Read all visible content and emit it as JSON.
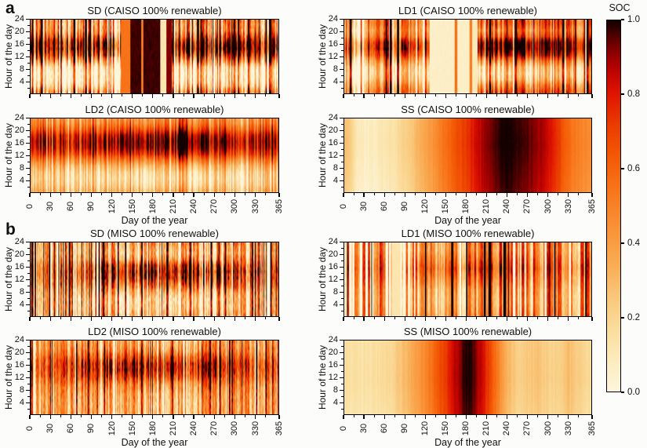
{
  "figure": {
    "panel_labels": {
      "a": "a",
      "b": "b"
    },
    "colorbar": {
      "title": "SOC",
      "tick_labels": [
        "1.0",
        "0.8",
        "0.6",
        "0.4",
        "0.2",
        "0.0"
      ],
      "tick_values": [
        1.0,
        0.8,
        0.6,
        0.4,
        0.2,
        0.0
      ]
    },
    "colormap_stops": [
      [
        0.0,
        "#fdf6dc"
      ],
      [
        0.08,
        "#fcecc0"
      ],
      [
        0.16,
        "#fadf9f"
      ],
      [
        0.25,
        "#f9c87c"
      ],
      [
        0.34,
        "#f9ad55"
      ],
      [
        0.44,
        "#f99237"
      ],
      [
        0.54,
        "#f8761b"
      ],
      [
        0.63,
        "#f45a05"
      ],
      [
        0.72,
        "#ea3b00"
      ],
      [
        0.8,
        "#e01500"
      ],
      [
        0.86,
        "#c00400"
      ],
      [
        0.91,
        "#900000"
      ],
      [
        0.95,
        "#5c0000"
      ],
      [
        0.98,
        "#2e0000"
      ],
      [
        1.0,
        "#140000"
      ]
    ],
    "axes": {
      "x_ticks": [
        0,
        30,
        60,
        90,
        120,
        150,
        180,
        210,
        240,
        270,
        300,
        330,
        365
      ],
      "x_minor_ticks": [
        15,
        45,
        75,
        105,
        135,
        165,
        195,
        225,
        255,
        285,
        315,
        345
      ],
      "y_ticks": [
        24,
        20,
        16,
        12,
        8,
        4
      ],
      "y_minor_ticks": [
        22,
        18,
        14,
        10,
        6,
        2
      ],
      "xlim": [
        0,
        365
      ],
      "ylim": [
        1,
        24
      ]
    }
  },
  "chart_data": [
    {
      "type": "heatmap",
      "id": "sd-caiso",
      "title": "SD (CAISO 100% renewable)",
      "xlabel": "Day of the year",
      "ylabel": "Hour of the day",
      "show_x_tick_labels": false,
      "show_x_label": false,
      "gen": {
        "seed": 11,
        "noise": 0.13,
        "env": [
          [
            0,
            0.42
          ],
          [
            365,
            0.42
          ]
        ],
        "stripe": {
          "amp": 0.3,
          "maxw": 2,
          "pex": 0.28
        },
        "profile": [
          [
            1,
            0.05
          ],
          [
            3,
            -0.22
          ],
          [
            5,
            -0.36
          ],
          [
            7,
            -0.4
          ],
          [
            9,
            -0.3
          ],
          [
            11,
            0.02
          ],
          [
            13,
            0.35
          ],
          [
            15,
            0.52
          ],
          [
            17,
            0.5
          ],
          [
            19,
            0.28
          ],
          [
            21,
            0.08
          ],
          [
            23,
            0.06
          ],
          [
            24,
            0.1
          ]
        ],
        "prof_env": [
          [
            0,
            1
          ],
          [
            365,
            1
          ]
        ],
        "blocks": [
          [
            133,
            146,
            0.55
          ],
          [
            147,
            190,
            0.97
          ],
          [
            163,
            165,
            0.5
          ],
          [
            191,
            199,
            0.12
          ],
          [
            200,
            207,
            0.92
          ]
        ]
      }
    },
    {
      "type": "heatmap",
      "id": "ld1-caiso",
      "title": "LD1 (CAISO 100% renewable)",
      "xlabel": "Day of the year",
      "ylabel": "Hour of the day",
      "show_x_tick_labels": false,
      "show_x_label": false,
      "gen": {
        "seed": 22,
        "noise": 0.08,
        "env": [
          [
            0,
            0.42
          ],
          [
            190,
            0.5
          ],
          [
            365,
            0.52
          ]
        ],
        "stripe": {
          "amp": 0.3,
          "maxw": 3,
          "pex": 0.2
        },
        "profile": [
          [
            1,
            0.12
          ],
          [
            3,
            -0.02
          ],
          [
            5,
            -0.2
          ],
          [
            7,
            -0.28
          ],
          [
            9,
            -0.22
          ],
          [
            11,
            -0.02
          ],
          [
            13,
            0.25
          ],
          [
            15,
            0.4
          ],
          [
            17,
            0.38
          ],
          [
            19,
            0.12
          ],
          [
            21,
            0.0
          ],
          [
            23,
            0.1
          ],
          [
            24,
            0.12
          ]
        ],
        "prof_env": [
          [
            0,
            0.8
          ],
          [
            125,
            0.8
          ],
          [
            197,
            1.25
          ],
          [
            280,
            1.25
          ],
          [
            340,
            0.95
          ],
          [
            365,
            0.85
          ]
        ],
        "blocks": [
          [
            126,
            162,
            0.06
          ],
          [
            163,
            166,
            0.55
          ],
          [
            167,
            184,
            0.06
          ],
          [
            185,
            188,
            0.5
          ],
          [
            189,
            196,
            0.1
          ]
        ]
      }
    },
    {
      "type": "heatmap",
      "id": "ld2-caiso",
      "title": "LD2 (CAISO 100% renewable)",
      "xlabel": "Day of the year",
      "ylabel": "Hour of the day",
      "show_x_tick_labels": true,
      "show_x_label": true,
      "gen": {
        "seed": 33,
        "noise": 0.05,
        "env": [
          [
            0,
            0.5
          ],
          [
            150,
            0.5
          ],
          [
            210,
            0.54
          ],
          [
            365,
            0.5
          ]
        ],
        "stripe": {
          "amp": 0.17,
          "maxw": 2,
          "pex": 0.12
        },
        "profile": [
          [
            1,
            -0.2
          ],
          [
            3,
            -0.3
          ],
          [
            5,
            -0.34
          ],
          [
            7,
            -0.3
          ],
          [
            9,
            -0.18
          ],
          [
            11,
            0.0
          ],
          [
            13,
            0.2
          ],
          [
            15,
            0.33
          ],
          [
            17,
            0.37
          ],
          [
            19,
            0.3
          ],
          [
            21,
            0.12
          ],
          [
            23,
            -0.02
          ],
          [
            24,
            -0.05
          ]
        ],
        "prof_env": [
          [
            0,
            0.85
          ],
          [
            150,
            1.1
          ],
          [
            210,
            1.25
          ],
          [
            280,
            1.1
          ],
          [
            365,
            0.9
          ]
        ],
        "blocks": []
      }
    },
    {
      "type": "heatmap",
      "id": "ss-caiso",
      "title": "SS (CAISO 100% renewable)",
      "xlabel": "Day of the year",
      "ylabel": "Hour of the day",
      "show_x_tick_labels": true,
      "show_x_label": true,
      "gen": {
        "seed": 44,
        "noise": 0.01,
        "env": [
          [
            0,
            0.3
          ],
          [
            10,
            0.22
          ],
          [
            17,
            0.1
          ],
          [
            30,
            0.07
          ],
          [
            45,
            0.08
          ],
          [
            60,
            0.12
          ],
          [
            75,
            0.15
          ],
          [
            94,
            0.22
          ],
          [
            117,
            0.35
          ],
          [
            135,
            0.45
          ],
          [
            148,
            0.55
          ],
          [
            160,
            0.62
          ],
          [
            171,
            0.68
          ],
          [
            182,
            0.74
          ],
          [
            194,
            0.82
          ],
          [
            205,
            0.88
          ],
          [
            217,
            0.94
          ],
          [
            228,
            0.98
          ],
          [
            240,
            1.0
          ],
          [
            255,
            0.98
          ],
          [
            270,
            0.95
          ],
          [
            285,
            0.9
          ],
          [
            300,
            0.85
          ],
          [
            316,
            0.72
          ],
          [
            325,
            0.62
          ],
          [
            335,
            0.55
          ],
          [
            347,
            0.5
          ],
          [
            356,
            0.48
          ],
          [
            365,
            0.47
          ]
        ],
        "stripe": {
          "amp": 0.02,
          "maxw": 2,
          "pex": 0
        },
        "profile": [
          [
            1,
            -0.03
          ],
          [
            8,
            -0.01
          ],
          [
            16,
            0.01
          ],
          [
            24,
            0.0
          ]
        ],
        "prof_env": [
          [
            0,
            1
          ],
          [
            365,
            1
          ]
        ],
        "blocks": []
      }
    },
    {
      "type": "heatmap",
      "id": "sd-miso",
      "title": "SD (MISO 100% renewable)",
      "xlabel": "Day of the year",
      "ylabel": "Hour of the day",
      "show_x_tick_labels": false,
      "show_x_label": false,
      "gen": {
        "seed": 55,
        "noise": 0.15,
        "env": [
          [
            0,
            0.4
          ],
          [
            365,
            0.4
          ]
        ],
        "stripe": {
          "amp": 0.33,
          "maxw": 2,
          "pex": 0.3
        },
        "profile": [
          [
            1,
            -0.06
          ],
          [
            3,
            -0.13
          ],
          [
            5,
            -0.16
          ],
          [
            7,
            -0.12
          ],
          [
            9,
            0.02
          ],
          [
            11,
            0.2
          ],
          [
            13,
            0.32
          ],
          [
            15,
            0.38
          ],
          [
            17,
            0.3
          ],
          [
            19,
            0.06
          ],
          [
            21,
            -0.06
          ],
          [
            23,
            -0.02
          ],
          [
            24,
            0.04
          ]
        ],
        "prof_env": [
          [
            0,
            0.45
          ],
          [
            60,
            0.6
          ],
          [
            100,
            1.0
          ],
          [
            150,
            1.3
          ],
          [
            220,
            1.35
          ],
          [
            280,
            1.1
          ],
          [
            320,
            0.7
          ],
          [
            365,
            0.5
          ]
        ],
        "blocks": []
      }
    },
    {
      "type": "heatmap",
      "id": "ld1-miso",
      "title": "LD1 (MISO 100% renewable)",
      "xlabel": "Day of the year",
      "ylabel": "Hour of the day",
      "show_x_tick_labels": false,
      "show_x_label": false,
      "gen": {
        "seed": 66,
        "noise": 0.07,
        "env": [
          [
            0,
            0.45
          ],
          [
            365,
            0.45
          ]
        ],
        "stripe": {
          "amp": 0.36,
          "maxw": 4,
          "pex": 0.25
        },
        "profile": [
          [
            1,
            0.0
          ],
          [
            5,
            -0.06
          ],
          [
            9,
            -0.04
          ],
          [
            13,
            0.08
          ],
          [
            16,
            0.16
          ],
          [
            19,
            0.08
          ],
          [
            22,
            0.0
          ],
          [
            24,
            0.02
          ]
        ],
        "prof_env": [
          [
            0,
            0.6
          ],
          [
            140,
            1.3
          ],
          [
            200,
            1.3
          ],
          [
            280,
            0.85
          ],
          [
            365,
            0.65
          ]
        ],
        "blocks": [
          [
            70,
            82,
            0.12
          ]
        ]
      }
    },
    {
      "type": "heatmap",
      "id": "ld2-miso",
      "title": "LD2 (MISO 100% renewable)",
      "xlabel": "Day of the year",
      "ylabel": "Hour of the day",
      "show_x_tick_labels": true,
      "show_x_label": true,
      "gen": {
        "seed": 77,
        "noise": 0.12,
        "env": [
          [
            0,
            0.45
          ],
          [
            365,
            0.45
          ]
        ],
        "stripe": {
          "amp": 0.27,
          "maxw": 2,
          "pex": 0.2
        },
        "profile": [
          [
            1,
            -0.1
          ],
          [
            4,
            -0.12
          ],
          [
            7,
            -0.08
          ],
          [
            10,
            0.02
          ],
          [
            13,
            0.22
          ],
          [
            15,
            0.3
          ],
          [
            17,
            0.3
          ],
          [
            19,
            0.18
          ],
          [
            21,
            0.02
          ],
          [
            23,
            -0.05
          ],
          [
            24,
            -0.07
          ]
        ],
        "prof_env": [
          [
            0,
            0.5
          ],
          [
            100,
            1.0
          ],
          [
            150,
            1.25
          ],
          [
            200,
            1.3
          ],
          [
            260,
            1.1
          ],
          [
            300,
            0.8
          ],
          [
            330,
            0.6
          ],
          [
            365,
            0.55
          ]
        ],
        "blocks": []
      }
    },
    {
      "type": "heatmap",
      "id": "ss-miso",
      "title": "SS (MISO 100% renewable)",
      "xlabel": "Day of the year",
      "ylabel": "Hour of the day",
      "show_x_tick_labels": true,
      "show_x_label": true,
      "gen": {
        "seed": 88,
        "noise": 0.01,
        "env": [
          [
            0,
            0.16
          ],
          [
            20,
            0.13
          ],
          [
            40,
            0.15
          ],
          [
            63,
            0.17
          ],
          [
            80,
            0.24
          ],
          [
            91,
            0.3
          ],
          [
            105,
            0.38
          ],
          [
            117,
            0.46
          ],
          [
            130,
            0.56
          ],
          [
            140,
            0.64
          ],
          [
            150,
            0.72
          ],
          [
            160,
            0.82
          ],
          [
            171,
            0.92
          ],
          [
            180,
            1.0
          ],
          [
            188,
            0.97
          ],
          [
            196,
            0.88
          ],
          [
            205,
            0.82
          ],
          [
            212,
            0.72
          ],
          [
            220,
            0.6
          ],
          [
            228,
            0.48
          ],
          [
            236,
            0.36
          ],
          [
            245,
            0.28
          ],
          [
            255,
            0.22
          ],
          [
            268,
            0.24
          ],
          [
            280,
            0.27
          ],
          [
            292,
            0.24
          ],
          [
            305,
            0.2
          ],
          [
            318,
            0.22
          ],
          [
            330,
            0.28
          ],
          [
            340,
            0.25
          ],
          [
            352,
            0.2
          ],
          [
            365,
            0.16
          ]
        ],
        "stripe": {
          "amp": 0.025,
          "maxw": 2,
          "pex": 0
        },
        "profile": [
          [
            1,
            -0.02
          ],
          [
            12,
            0.01
          ],
          [
            24,
            0.0
          ]
        ],
        "prof_env": [
          [
            0,
            1
          ],
          [
            365,
            1
          ]
        ],
        "blocks": []
      }
    }
  ]
}
